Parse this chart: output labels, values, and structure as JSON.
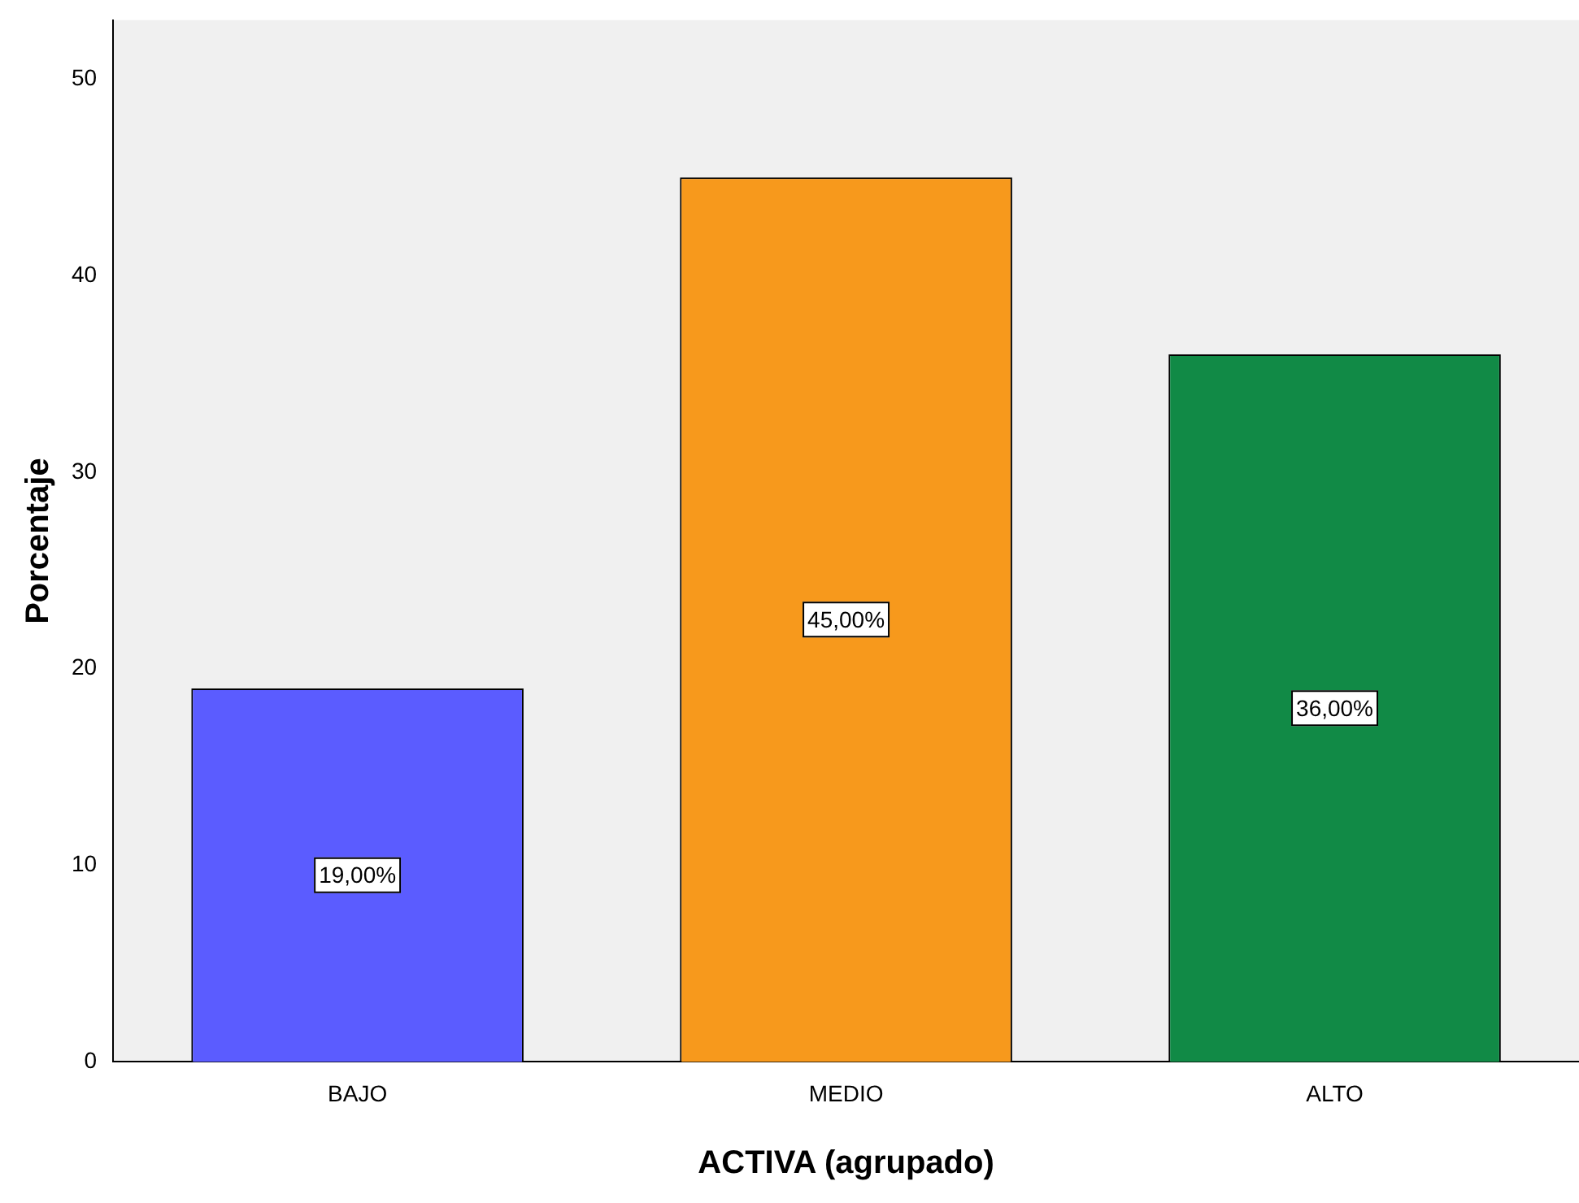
{
  "chart_data": {
    "type": "bar",
    "xlabel": "ACTIVA (agrupado)",
    "ylabel": "Porcentaje",
    "categories": [
      "BAJO",
      "MEDIO",
      "ALTO"
    ],
    "values": [
      19,
      45,
      36
    ],
    "colors": [
      "#5b5cff",
      "#f7991c",
      "#118a46"
    ],
    "value_labels": [
      "19,00%",
      "45,00%",
      "36,00%"
    ],
    "ylim": [
      0,
      53
    ],
    "yticks": [
      0,
      10,
      20,
      30,
      40,
      50
    ],
    "grid": false,
    "legend": false
  }
}
